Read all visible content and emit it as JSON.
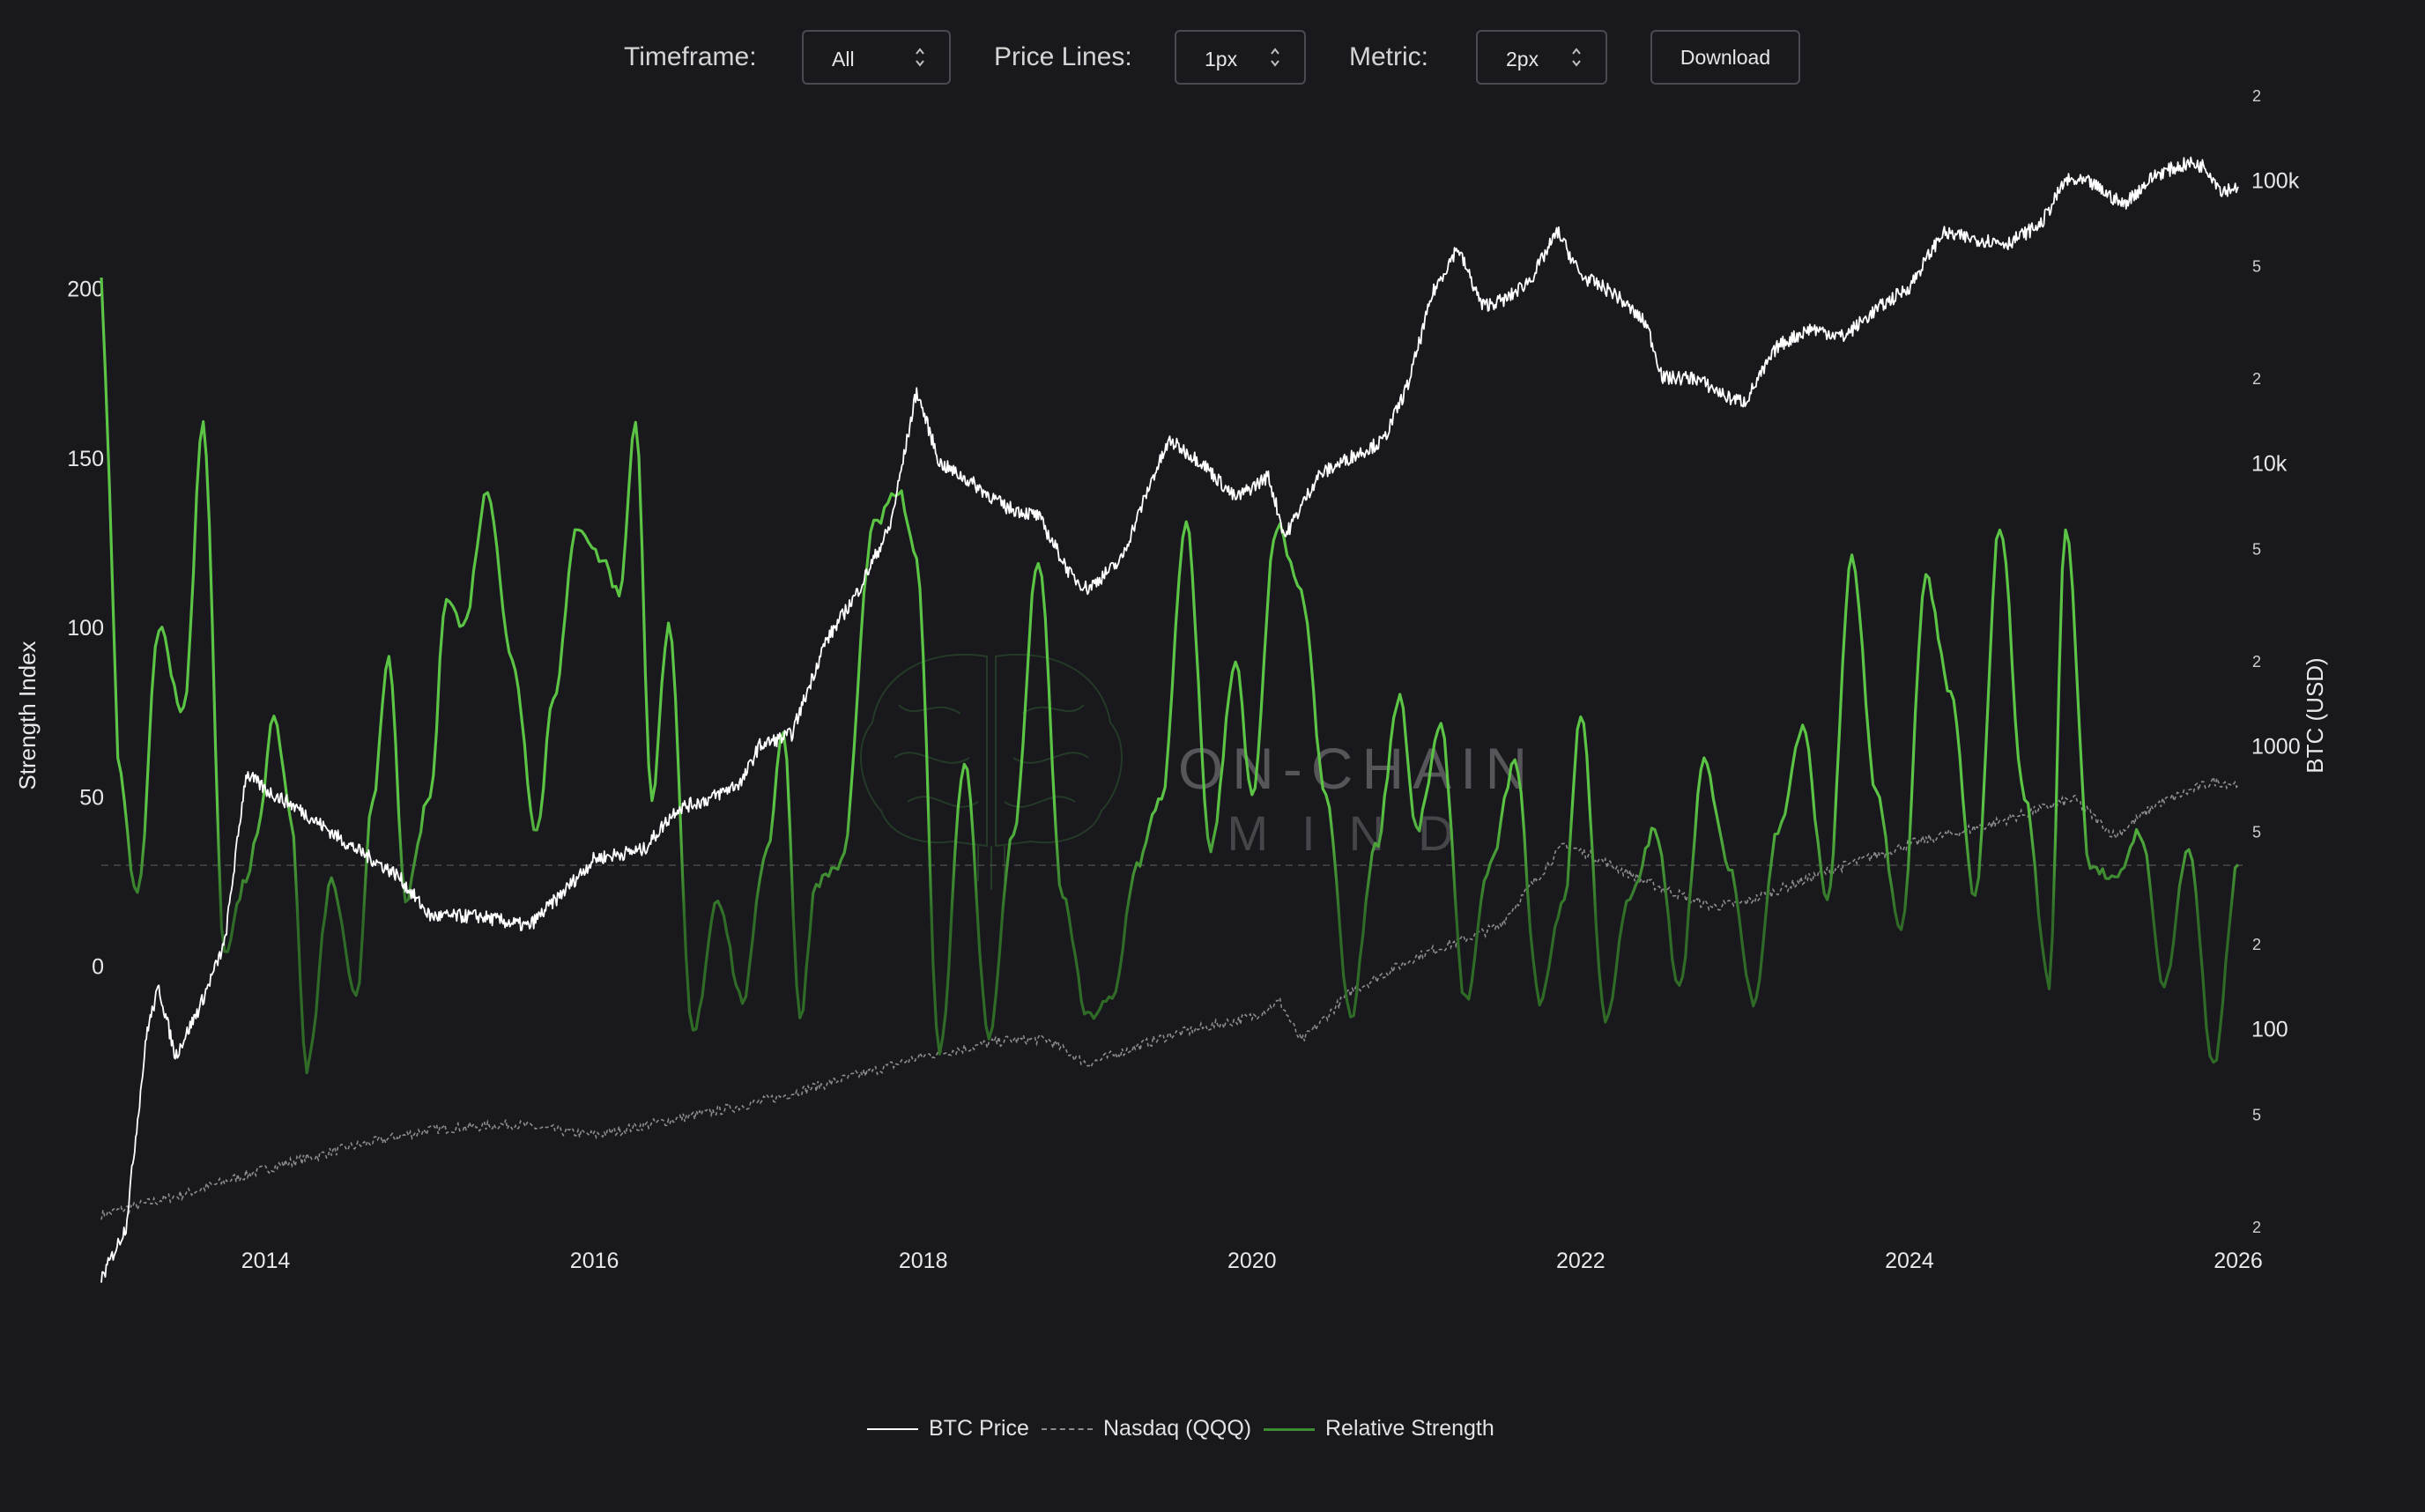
{
  "controls": {
    "timeframe_label": "Timeframe:",
    "timeframe_value": "All",
    "price_lines_label": "Price Lines:",
    "price_lines_value": "1px",
    "metric_label": "Metric:",
    "metric_value": "2px",
    "download_label": "Download"
  },
  "watermark": {
    "line1": "ON-CHAIN",
    "line2": "MIND"
  },
  "colors": {
    "background": "#18181d",
    "btc": "#ffffff",
    "nasdaq": "#8c8c8c",
    "strength": "#5cc445",
    "strength_dim": "#2f6b26",
    "grid_ref": "#4a4a4a"
  },
  "chart_data": {
    "type": "line",
    "xlim": [
      2013.0,
      2026.0
    ],
    "x_ticks": [
      "2014",
      "2016",
      "2018",
      "2020",
      "2022",
      "2024",
      "2026"
    ],
    "y_left": {
      "label": "Strength Index",
      "ylim": [
        -30,
        215
      ],
      "ticks": [
        "0",
        "50",
        "100",
        "150",
        "200"
      ],
      "reference_line": 50
    },
    "y_right": {
      "label": "BTC (USD)",
      "scale": "log",
      "ylim": [
        20,
        200000
      ],
      "major_ticks": [
        "100",
        "1000",
        "10k",
        "100k"
      ],
      "minor_ticks": [
        "2",
        "5",
        "2",
        "5",
        "2",
        "5",
        "2",
        "5",
        "2",
        "5",
        "2"
      ]
    },
    "legend_position": "bottom-center",
    "series": [
      {
        "name": "BTC Price",
        "axis": "right",
        "style": "solid",
        "x": [
          2013.0,
          2013.15,
          2013.28,
          2013.35,
          2013.45,
          2013.6,
          2013.75,
          2013.88,
          2014.0,
          2014.2,
          2014.5,
          2014.8,
          2015.0,
          2015.3,
          2015.6,
          2015.8,
          2016.0,
          2016.3,
          2016.5,
          2016.7,
          2016.9,
          2017.0,
          2017.2,
          2017.4,
          2017.6,
          2017.8,
          2017.96,
          2018.1,
          2018.3,
          2018.5,
          2018.7,
          2018.9,
          2019.0,
          2019.2,
          2019.4,
          2019.5,
          2019.7,
          2019.9,
          2020.1,
          2020.2,
          2020.4,
          2020.6,
          2020.8,
          2020.95,
          2021.1,
          2021.25,
          2021.4,
          2021.55,
          2021.7,
          2021.86,
          2022.0,
          2022.2,
          2022.4,
          2022.5,
          2022.7,
          2022.9,
          2023.0,
          2023.2,
          2023.4,
          2023.6,
          2023.8,
          2024.0,
          2024.2,
          2024.4,
          2024.6,
          2024.8,
          2024.95,
          2025.1,
          2025.3,
          2025.5,
          2025.7,
          2025.8,
          2025.9,
          2026.0
        ],
        "y": [
          13,
          20,
          100,
          140,
          80,
          120,
          200,
          800,
          700,
          600,
          450,
          350,
          250,
          250,
          230,
          300,
          400,
          430,
          600,
          650,
          750,
          1000,
          1100,
          2300,
          3500,
          6000,
          18000,
          10000,
          8500,
          7000,
          6500,
          4000,
          3600,
          4500,
          9000,
          12000,
          10000,
          7500,
          9000,
          5500,
          9000,
          10500,
          12000,
          19000,
          40000,
          58000,
          36000,
          38000,
          45000,
          66000,
          46000,
          40000,
          31000,
          20000,
          20000,
          17000,
          16500,
          26000,
          30000,
          28000,
          35000,
          42000,
          65000,
          62000,
          60000,
          70000,
          100000,
          98000,
          82000,
          105000,
          115000,
          112000,
          92000,
          95000
        ]
      },
      {
        "name": "Nasdaq (QQQ)",
        "axis": "right",
        "style": "dashed",
        "x": [
          2013.0,
          2013.5,
          2014.0,
          2014.5,
          2015.0,
          2015.5,
          2016.0,
          2016.5,
          2017.0,
          2017.5,
          2018.0,
          2018.5,
          2018.75,
          2019.0,
          2019.5,
          2020.0,
          2020.17,
          2020.3,
          2020.6,
          2021.0,
          2021.5,
          2021.9,
          2022.1,
          2022.4,
          2022.8,
          2023.0,
          2023.5,
          2024.0,
          2024.5,
          2025.0,
          2025.25,
          2025.5,
          2025.85,
          2026.0
        ],
        "y": [
          22,
          26,
          32,
          38,
          44,
          46,
          42,
          48,
          55,
          66,
          80,
          91,
          92,
          75,
          95,
          110,
          125,
          90,
          135,
          180,
          230,
          450,
          400,
          330,
          270,
          280,
          360,
          450,
          530,
          650,
          480,
          620,
          750,
          730
        ]
      },
      {
        "name": "Relative Strength",
        "axis": "left",
        "style": "solid",
        "x": [
          2013.0,
          2013.05,
          2013.1,
          2013.22,
          2013.35,
          2013.5,
          2013.62,
          2013.75,
          2013.88,
          2013.95,
          2014.05,
          2014.15,
          2014.25,
          2014.4,
          2014.55,
          2014.65,
          2014.75,
          2014.85,
          2015.0,
          2015.1,
          2015.2,
          2015.35,
          2015.5,
          2015.65,
          2015.75,
          2015.9,
          2016.05,
          2016.15,
          2016.25,
          2016.35,
          2016.45,
          2016.6,
          2016.75,
          2016.9,
          2017.05,
          2017.15,
          2017.25,
          2017.35,
          2017.5,
          2017.7,
          2017.85,
          2017.96,
          2018.1,
          2018.25,
          2018.4,
          2018.55,
          2018.7,
          2018.85,
          2019.0,
          2019.15,
          2019.3,
          2019.45,
          2019.6,
          2019.75,
          2019.9,
          2020.0,
          2020.15,
          2020.3,
          2020.45,
          2020.6,
          2020.75,
          2020.9,
          2021.0,
          2021.15,
          2021.3,
          2021.45,
          2021.6,
          2021.75,
          2021.9,
          2022.0,
          2022.15,
          2022.3,
          2022.45,
          2022.6,
          2022.75,
          2022.9,
          2023.05,
          2023.2,
          2023.35,
          2023.5,
          2023.65,
          2023.8,
          2023.95,
          2024.1,
          2024.25,
          2024.4,
          2024.55,
          2024.7,
          2024.85,
          2024.95,
          2025.1,
          2025.25,
          2025.4,
          2025.55,
          2025.7,
          2025.85,
          2026.0
        ],
        "y": [
          205,
          140,
          60,
          20,
          100,
          75,
          160,
          5,
          25,
          40,
          75,
          45,
          -30,
          25,
          -10,
          50,
          90,
          20,
          50,
          110,
          100,
          140,
          90,
          40,
          80,
          130,
          120,
          110,
          160,
          50,
          100,
          -20,
          20,
          -10,
          35,
          70,
          -15,
          25,
          30,
          130,
          140,
          120,
          -25,
          60,
          -20,
          40,
          120,
          20,
          -15,
          -10,
          30,
          50,
          130,
          35,
          90,
          50,
          130,
          110,
          50,
          -15,
          35,
          80,
          40,
          70,
          -10,
          30,
          60,
          -10,
          20,
          75,
          -15,
          20,
          40,
          -5,
          60,
          30,
          -10,
          40,
          70,
          20,
          120,
          50,
          10,
          115,
          80,
          20,
          130,
          50,
          -5,
          130,
          30,
          25,
          40,
          -5,
          35,
          -30,
          30
        ]
      }
    ]
  }
}
